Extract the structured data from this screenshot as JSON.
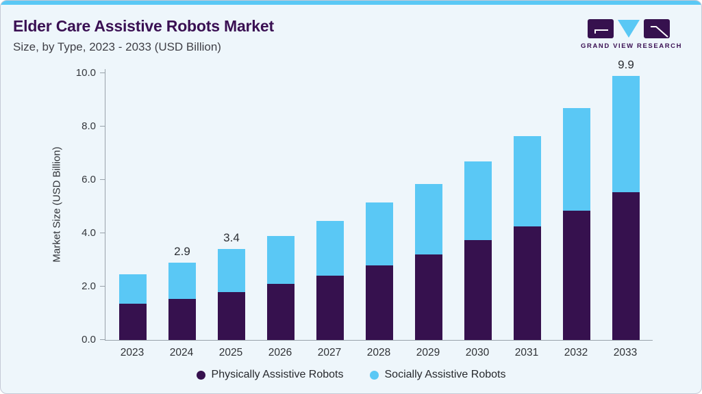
{
  "header": {
    "title": "Elder Care Assistive Robots Market",
    "subtitle": "Size, by Type, 2023 - 2033 (USD Billion)"
  },
  "logo": {
    "text": "GRAND VIEW RESEARCH"
  },
  "colors": {
    "accent_blue": "#5ac8f5",
    "series_purple": "#36114e",
    "series_blue": "#5ac8f5",
    "card_bg": "#eef6fb",
    "title_purple": "#3a1053"
  },
  "chart_data": {
    "type": "bar",
    "stacked": true,
    "title": "Elder Care Assistive Robots Market Size, by Type, 2023 - 2033 (USD Billion)",
    "xlabel": "",
    "ylabel": "Market Size (USD Billion)",
    "ylim": [
      0,
      10
    ],
    "yticks": [
      "0.0",
      "2.0",
      "4.0",
      "6.0",
      "8.0",
      "10.0"
    ],
    "grid": false,
    "legend_position": "bottom",
    "categories": [
      "2023",
      "2024",
      "2025",
      "2026",
      "2027",
      "2028",
      "2029",
      "2030",
      "2031",
      "2032",
      "2033"
    ],
    "series": [
      {
        "name": "Physically Assistive Robots",
        "color": "#36114e",
        "values": [
          1.35,
          1.55,
          1.8,
          2.1,
          2.4,
          2.8,
          3.2,
          3.75,
          4.25,
          4.85,
          5.55
        ]
      },
      {
        "name": "Socially Assistive Robots",
        "color": "#5ac8f5",
        "values": [
          1.1,
          1.35,
          1.6,
          1.8,
          2.05,
          2.35,
          2.65,
          2.95,
          3.4,
          3.85,
          4.35
        ]
      }
    ],
    "totals": [
      2.45,
      2.9,
      3.4,
      3.9,
      4.45,
      5.15,
      5.85,
      6.7,
      7.65,
      8.7,
      9.9
    ],
    "bar_labels": {
      "2024": "2.9",
      "2025": "3.4",
      "2033": "9.9"
    }
  }
}
